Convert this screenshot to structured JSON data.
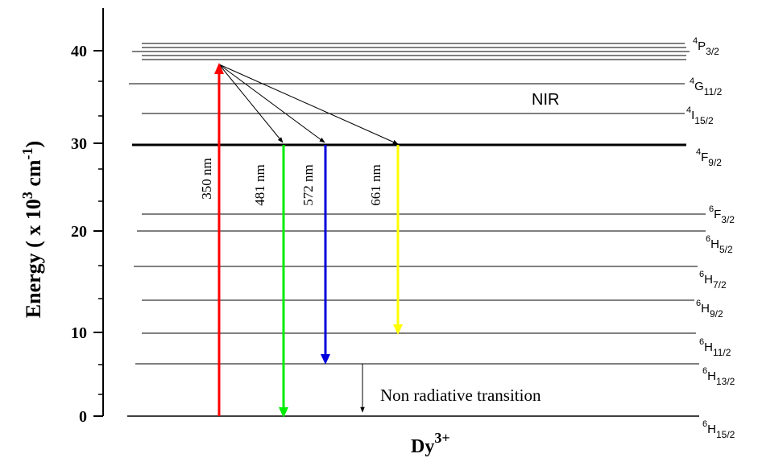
{
  "axis": {
    "y_title_main": "Energy ( x 10",
    "y_title_exp1": "3",
    "y_title_unit": " cm",
    "y_title_exp2": "-1",
    "y_title_close": ")",
    "x_title_base": "Dy",
    "x_title_sup": "3+",
    "ticks": [
      "40",
      "30",
      "20",
      "10",
      "0"
    ]
  },
  "levels": [
    {
      "sup": "4",
      "main": "P",
      "sub": "3/2"
    },
    {
      "sup": "4",
      "main": "G",
      "sub": "11/2"
    },
    {
      "sup": "4",
      "main": "I",
      "sub": "15/2"
    },
    {
      "sup": "4",
      "main": "F",
      "sub": "9/2"
    },
    {
      "sup": "6",
      "main": "F",
      "sub": "3/2"
    },
    {
      "sup": "6",
      "main": "H",
      "sub": "5/2"
    },
    {
      "sup": "6",
      "main": "H",
      "sub": "7/2"
    },
    {
      "sup": "6",
      "main": "H",
      "sub": "9/2"
    },
    {
      "sup": "6",
      "main": "H",
      "sub": "11/2"
    },
    {
      "sup": "6",
      "main": "H",
      "sub": "13/2"
    },
    {
      "sup": "6",
      "main": "H",
      "sub": "15/2"
    }
  ],
  "transitions": [
    {
      "label": "350 nm",
      "color": "#ff0000"
    },
    {
      "label": "481 nm",
      "color": "#00ee00"
    },
    {
      "label": "572 nm",
      "color": "#0000dd"
    },
    {
      "label": "661 nm",
      "color": "#ffff00"
    }
  ],
  "annotations": {
    "nir": "NIR",
    "non_radiative": "Non radiative transition"
  }
}
